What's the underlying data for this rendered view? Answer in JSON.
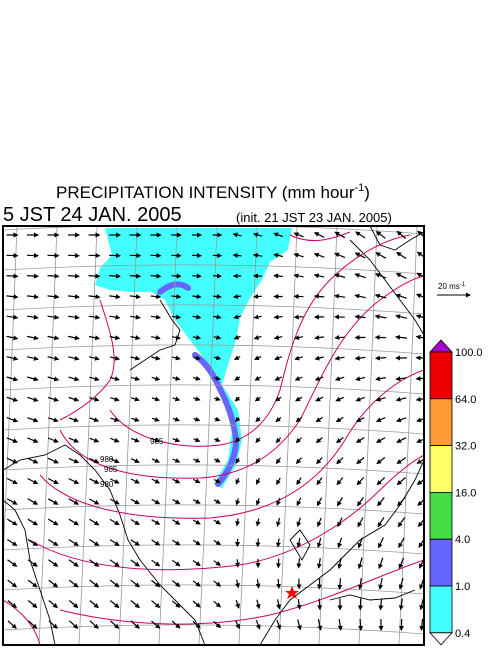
{
  "title": {
    "text": "PRECIPITATION INTENSITY (mm hour",
    "exponent": "-1",
    "close": ")"
  },
  "valid_time": "5 JST 24 JAN. 2005",
  "init_time": "(init. 21 JST 23 JAN. 2005)",
  "wind_scale": {
    "text": "20 ms",
    "exponent": "-1"
  },
  "contour_labels": [
    "985",
    "980",
    "985",
    "980"
  ],
  "colorbar": {
    "levels": [
      {
        "value": 100,
        "label": "100.0"
      },
      {
        "value": 64,
        "label": "64.0"
      },
      {
        "value": 32,
        "label": "32.0"
      },
      {
        "value": 16,
        "label": "16.0"
      },
      {
        "value": 4,
        "label": "4.0"
      },
      {
        "value": 1,
        "label": "1.0"
      },
      {
        "value": 0.4,
        "label": "0.4"
      }
    ],
    "colors": [
      "#ee0000",
      "#ff9933",
      "#ffff66",
      "#44dd44",
      "#6666ff",
      "#44ffff"
    ],
    "over_color": "#aa00cc",
    "under_color": "#ffffff"
  }
}
